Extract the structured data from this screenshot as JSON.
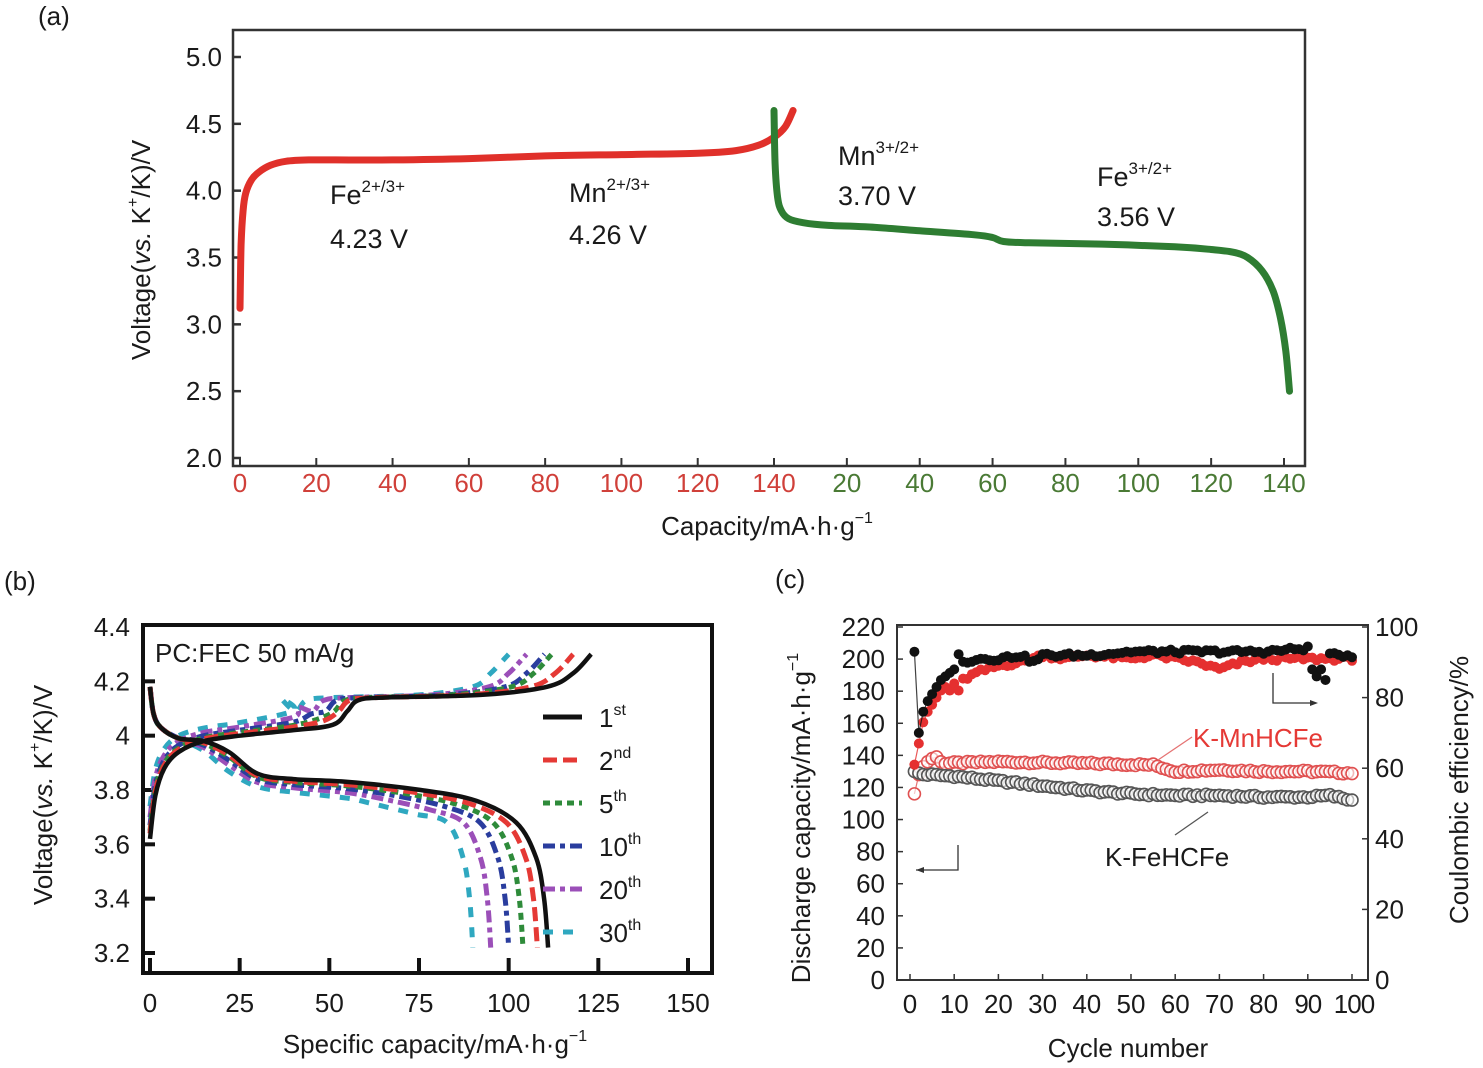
{
  "chart_data": [
    {
      "id": "a",
      "panel_label": "(a)",
      "type": "line",
      "title": "",
      "xlabel": "Capacity/mA·h·g",
      "xlabel_sup": "−1",
      "ylabel_parts": [
        "Voltage(",
        "vs.",
        " K",
        "+",
        "/K)/V"
      ],
      "ylim": [
        2.0,
        5.0
      ],
      "yticks": [
        2.0,
        2.5,
        3.0,
        3.5,
        4.0,
        4.5,
        5.0
      ],
      "ytick_labels": [
        "2.0",
        "2.5",
        "3.0",
        "3.5",
        "4.0",
        "4.5",
        "5.0"
      ],
      "charge_xticks": [
        0,
        20,
        40,
        60,
        80,
        100,
        120,
        140
      ],
      "discharge_xticks": [
        20,
        40,
        60,
        80,
        100,
        120,
        140
      ],
      "charge_color": "#e0302a",
      "discharge_color": "#2e7d32",
      "charge_tick_color": "#d0403a",
      "discharge_tick_color": "#4a7a35",
      "grid": false,
      "series": [
        {
          "name": "charge",
          "color": "#e0302a",
          "x": [
            0,
            0.3,
            0.8,
            1.5,
            3,
            5,
            8,
            12,
            18,
            25,
            40,
            60,
            80,
            100,
            120,
            130,
            136,
            140,
            143,
            145
          ],
          "y": [
            3.12,
            3.6,
            3.85,
            3.98,
            4.08,
            4.14,
            4.19,
            4.22,
            4.23,
            4.23,
            4.23,
            4.24,
            4.26,
            4.27,
            4.28,
            4.3,
            4.34,
            4.4,
            4.48,
            4.6
          ]
        },
        {
          "name": "discharge",
          "color": "#2e7d32",
          "x": [
            0,
            0.3,
            1,
            2,
            4,
            8,
            15,
            25,
            40,
            55,
            60,
            63,
            70,
            90,
            110,
            120,
            126,
            130,
            134,
            137,
            139,
            140.5,
            141.5
          ],
          "y": [
            4.6,
            4.2,
            3.95,
            3.85,
            3.79,
            3.76,
            3.74,
            3.73,
            3.7,
            3.67,
            3.65,
            3.62,
            3.61,
            3.6,
            3.58,
            3.56,
            3.54,
            3.5,
            3.4,
            3.25,
            3.05,
            2.8,
            2.5
          ]
        }
      ],
      "annotations": [
        {
          "species": "Fe",
          "sup": "2+/3+",
          "value": "4.23 V"
        },
        {
          "species": "Mn",
          "sup": "2+/3+",
          "value": "4.26 V"
        },
        {
          "species": "Mn",
          "sup": "3+/2+",
          "value": "3.70 V"
        },
        {
          "species": "Fe",
          "sup": "3+/2+",
          "value": "3.56 V"
        }
      ]
    },
    {
      "id": "b",
      "panel_label": "(b)",
      "type": "line",
      "title": "",
      "inset_text": "PC:FEC 50 mA/g",
      "xlabel": "Specific capacity/mA·h·g",
      "xlabel_sup": "−1",
      "ylabel_parts": [
        "Voltage(",
        "vs.",
        " K",
        "+",
        "/K)/V"
      ],
      "xlim": [
        0,
        160
      ],
      "ylim": [
        3.15,
        4.4
      ],
      "xticks": [
        0,
        25,
        50,
        75,
        100,
        125,
        150
      ],
      "xtick_labels": [
        "0",
        "25",
        "50",
        "75",
        "100",
        "125",
        "150"
      ],
      "yticks": [
        3.2,
        3.4,
        3.6,
        3.8,
        4.0,
        4.2,
        4.4
      ],
      "ytick_labels": [
        "3.2",
        "3.4",
        "3.6",
        "3.8",
        "4",
        "4.2",
        "4.4"
      ],
      "legend_position": "right",
      "grid": false,
      "series": [
        {
          "name": "1",
          "suffix": "st",
          "color": "#111111",
          "dash": "solid",
          "charge_end": 123,
          "discharge_end": 111,
          "shift": 0
        },
        {
          "name": "2",
          "suffix": "nd",
          "color": "#e53935",
          "dash": "long-dash",
          "charge_end": 118,
          "discharge_end": 108,
          "shift": 2
        },
        {
          "name": "5",
          "suffix": "th",
          "color": "#2e8b3a",
          "dash": "short-dash",
          "charge_end": 112,
          "discharge_end": 104,
          "shift": 3
        },
        {
          "name": "10",
          "suffix": "th",
          "color": "#2a3d9e",
          "dash": "dash-dot",
          "charge_end": 110,
          "discharge_end": 100,
          "shift": 5
        },
        {
          "name": "20",
          "suffix": "th",
          "color": "#9b4fb8",
          "dash": "dash-dot",
          "charge_end": 105,
          "discharge_end": 95,
          "shift": 8
        },
        {
          "name": "30",
          "suffix": "th",
          "color": "#2fa8c0",
          "dash": "sparse-dash",
          "charge_end": 100,
          "discharge_end": 90,
          "shift": 12
        }
      ]
    },
    {
      "id": "c",
      "panel_label": "(c)",
      "type": "scatter",
      "title": "",
      "xlabel": "Cycle number",
      "ylabel_left": "Discharge capacity/mA·h·g",
      "ylabel_left_sup": "−1",
      "ylabel_right": "Coulombic efficiency/%",
      "xlim": [
        0,
        100
      ],
      "ylim_left": [
        0,
        220
      ],
      "ylim_right": [
        0,
        100
      ],
      "xticks": [
        0,
        10,
        20,
        30,
        40,
        50,
        60,
        70,
        80,
        90,
        100
      ],
      "xtick_labels": [
        "0",
        "10",
        "20",
        "30",
        "40",
        "50",
        "60",
        "70",
        "80",
        "90",
        "100"
      ],
      "yticks_left": [
        0,
        20,
        40,
        60,
        80,
        100,
        120,
        140,
        160,
        180,
        200,
        220
      ],
      "yticks_right": [
        0,
        20,
        40,
        60,
        80,
        100
      ],
      "grid": false,
      "series": [
        {
          "name": "K-MnHCFe capacity",
          "axis": "left",
          "marker": "open-circle",
          "color": "#e05050",
          "first_points": [
            [
              1,
              116
            ],
            [
              2,
              128
            ],
            [
              3,
              133
            ],
            [
              4,
              136
            ],
            [
              5,
              138
            ],
            [
              6,
              139
            ],
            [
              7,
              136
            ]
          ],
          "trend": [
            [
              8,
              135
            ],
            [
              20,
              136
            ],
            [
              40,
              135
            ],
            [
              55,
              134
            ],
            [
              60,
              130
            ],
            [
              70,
              131
            ],
            [
              80,
              130
            ],
            [
              90,
              130
            ],
            [
              100,
              129
            ]
          ]
        },
        {
          "name": "K-FeHCFe capacity",
          "axis": "left",
          "marker": "open-circle",
          "color": "#555555",
          "first_points": [
            [
              1,
              130
            ],
            [
              2,
              129
            ],
            [
              3,
              128
            ]
          ],
          "trend": [
            [
              4,
              128
            ],
            [
              10,
              127
            ],
            [
              20,
              124
            ],
            [
              30,
              121
            ],
            [
              40,
              118
            ],
            [
              50,
              116
            ],
            [
              60,
              115
            ],
            [
              70,
              115
            ],
            [
              80,
              114
            ],
            [
              90,
              114
            ],
            [
              95,
              115
            ],
            [
              100,
              112
            ]
          ]
        },
        {
          "name": "K-MnHCFe efficiency",
          "axis": "right",
          "marker": "filled-circle",
          "color": "#e53030",
          "first_points": [
            [
              1,
              61
            ],
            [
              2,
              67
            ],
            [
              3,
              73
            ],
            [
              4,
              76
            ],
            [
              5,
              78
            ],
            [
              6,
              80
            ],
            [
              7,
              82
            ],
            [
              8,
              83
            ],
            [
              9,
              82
            ],
            [
              10,
              84
            ],
            [
              11,
              82
            ]
          ],
          "trend": [
            [
              12,
              85
            ],
            [
              15,
              87
            ],
            [
              20,
              89
            ],
            [
              25,
              90
            ],
            [
              30,
              92
            ],
            [
              35,
              91
            ],
            [
              40,
              92
            ],
            [
              50,
              91
            ],
            [
              55,
              92
            ],
            [
              60,
              91
            ],
            [
              65,
              90
            ],
            [
              70,
              88
            ],
            [
              75,
              90
            ],
            [
              80,
              91
            ],
            [
              90,
              91
            ],
            [
              95,
              91
            ],
            [
              100,
              91
            ]
          ]
        },
        {
          "name": "K-FeHCFe efficiency",
          "axis": "right",
          "marker": "filled-circle",
          "color": "#111111",
          "first_points": [
            [
              1,
              93
            ],
            [
              2,
              70
            ],
            [
              3,
              76
            ],
            [
              4,
              79
            ],
            [
              5,
              81
            ],
            [
              6,
              83
            ],
            [
              7,
              85
            ],
            [
              8,
              86
            ],
            [
              9,
              87
            ],
            [
              10,
              88
            ]
          ],
          "trend": [
            [
              12,
              90
            ],
            [
              15,
              91
            ],
            [
              20,
              91
            ],
            [
              25,
              92
            ],
            [
              28,
              90
            ],
            [
              30,
              92
            ],
            [
              40,
              92
            ],
            [
              50,
              93
            ],
            [
              60,
              93
            ],
            [
              70,
              93
            ],
            [
              80,
              93
            ],
            [
              90,
              94
            ],
            [
              91,
              88
            ],
            [
              92,
              86
            ],
            [
              93,
              88
            ],
            [
              94,
              85
            ],
            [
              95,
              92
            ],
            [
              100,
              92
            ]
          ]
        }
      ],
      "labels": [
        {
          "text": "K-MnHCFe",
          "color": "#e53935"
        },
        {
          "text": "K-FeHCFe",
          "color": "#1a1a1a"
        }
      ]
    }
  ]
}
